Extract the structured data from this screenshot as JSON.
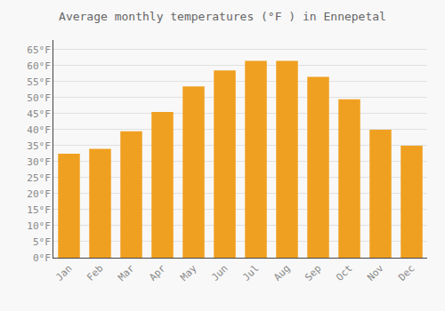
{
  "chart_data": {
    "type": "bar",
    "title": "Average monthly temperatures (°F ) in Ennepetal",
    "categories": [
      "Jan",
      "Feb",
      "Mar",
      "Apr",
      "May",
      "Jun",
      "Jul",
      "Aug",
      "Sep",
      "Oct",
      "Nov",
      "Dec"
    ],
    "values": [
      32.5,
      34.0,
      39.5,
      45.5,
      53.5,
      58.5,
      61.5,
      61.5,
      56.5,
      49.5,
      40.0,
      35.0
    ],
    "color": "#F0A020",
    "ylim": [
      0,
      68
    ],
    "yticks": [
      {
        "value": 0,
        "label": "0°F"
      },
      {
        "value": 5,
        "label": "5°F"
      },
      {
        "value": 10,
        "label": "10°F"
      },
      {
        "value": 15,
        "label": "15°F"
      },
      {
        "value": 20,
        "label": "20°F"
      },
      {
        "value": 25,
        "label": "25°F"
      },
      {
        "value": 30,
        "label": "30°F"
      },
      {
        "value": 35,
        "label": "35°F"
      },
      {
        "value": 40,
        "label": "40°F"
      },
      {
        "value": 45,
        "label": "45°F"
      },
      {
        "value": 50,
        "label": "50°F"
      },
      {
        "value": 55,
        "label": "55°F"
      },
      {
        "value": 60,
        "label": "60°F"
      },
      {
        "value": 65,
        "label": "65°F"
      }
    ],
    "grid": true
  }
}
